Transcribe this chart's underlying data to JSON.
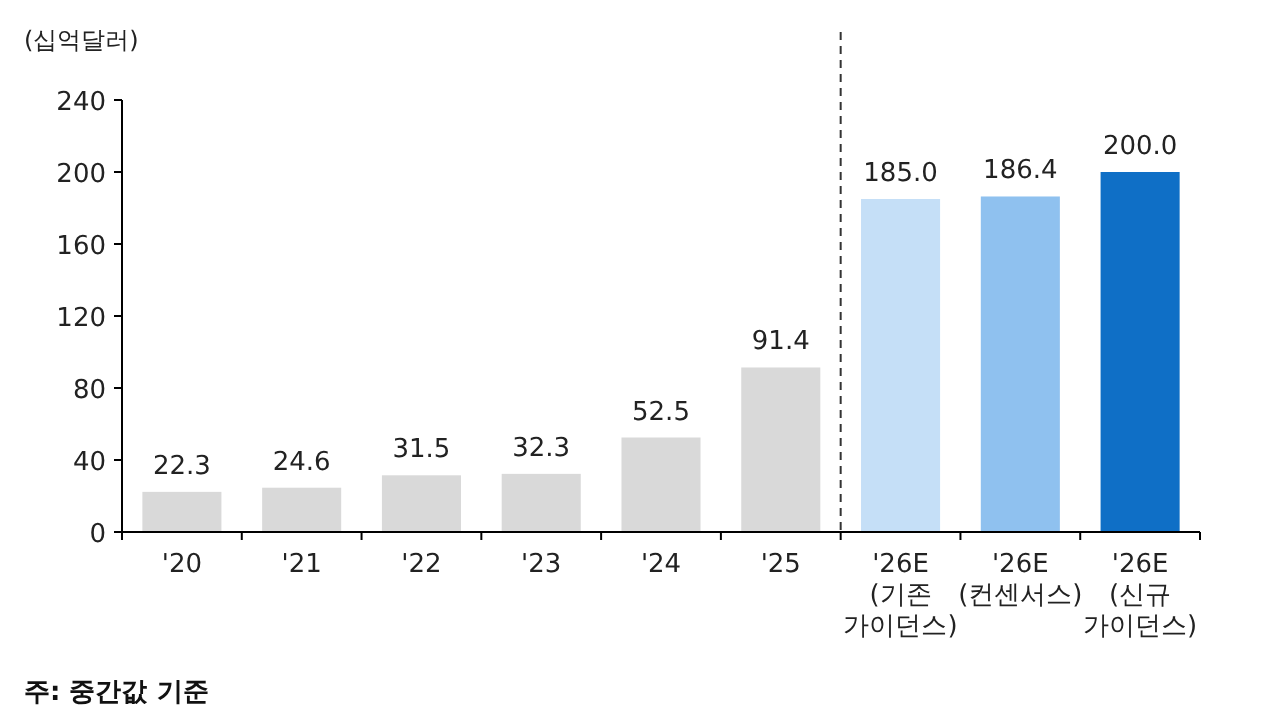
{
  "chart_data": {
    "type": "bar",
    "ylabel": "(십억달러)",
    "categories": [
      "'20",
      "'21",
      "'22",
      "'23",
      "'24",
      "'25",
      "'26E\n(기존\n가이던스)",
      "'26E\n(컨센서스)",
      "'26E\n(신규\n가이던스)"
    ],
    "values": [
      22.3,
      24.6,
      31.5,
      32.3,
      52.5,
      91.4,
      185.0,
      186.4,
      200.0
    ],
    "value_labels": [
      "22.3",
      "24.6",
      "31.5",
      "32.3",
      "52.5",
      "91.4",
      "185.0",
      "186.4",
      "200.0"
    ],
    "colors": [
      "#d9d9d9",
      "#d9d9d9",
      "#d9d9d9",
      "#d9d9d9",
      "#d9d9d9",
      "#d9d9d9",
      "#c5dff7",
      "#8fc1ef",
      "#0f6fc6"
    ],
    "ylim": [
      0,
      240
    ],
    "yticks": [
      0,
      40,
      80,
      120,
      160,
      200,
      240
    ],
    "grid": false,
    "annotations": [
      "주: 중간값 기준"
    ]
  }
}
